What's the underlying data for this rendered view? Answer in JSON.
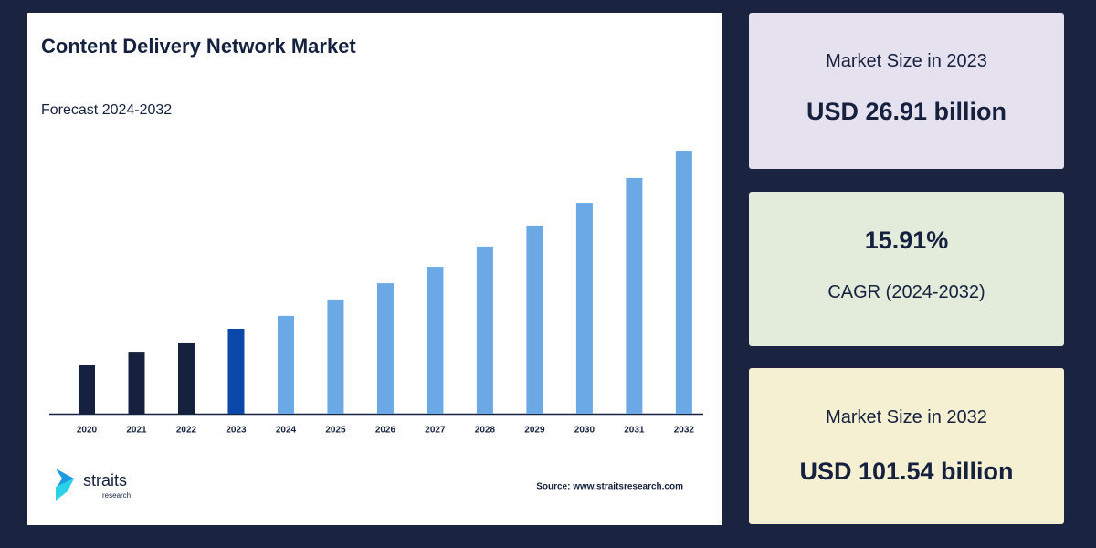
{
  "chart_data": {
    "type": "bar",
    "title": "Content Delivery Network Market",
    "subtitle": "Forecast 2024-2032",
    "categories": [
      "2020",
      "2021",
      "2022",
      "2023",
      "2024",
      "2025",
      "2026",
      "2027",
      "2028",
      "2029",
      "2030",
      "2031",
      "2032"
    ],
    "values": [
      11.6,
      17.3,
      20.8,
      26.91,
      32.3,
      39.2,
      46.0,
      52.9,
      61.4,
      70.2,
      79.7,
      90.1,
      101.54
    ],
    "colors": [
      "#15213f",
      "#15213f",
      "#15213f",
      "#0b47a8",
      "#6aa8e6",
      "#6aa8e6",
      "#6aa8e6",
      "#6aa8e6",
      "#6aa8e6",
      "#6aa8e6",
      "#6aa8e6",
      "#6aa8e6",
      "#6aa8e6"
    ],
    "ylim": [
      -8.7,
      107.3
    ],
    "source": "Source: www.straitsresearch.com"
  },
  "logo": {
    "name": "straits",
    "tagline": "research"
  },
  "cards": [
    {
      "label": "Market Size in 2023",
      "value": "USD 26.91 billion"
    },
    {
      "label": "CAGR (2024-2032)",
      "value": "15.91%"
    },
    {
      "label": "Market Size in 2032",
      "value": "USD 101.54 billion"
    }
  ]
}
